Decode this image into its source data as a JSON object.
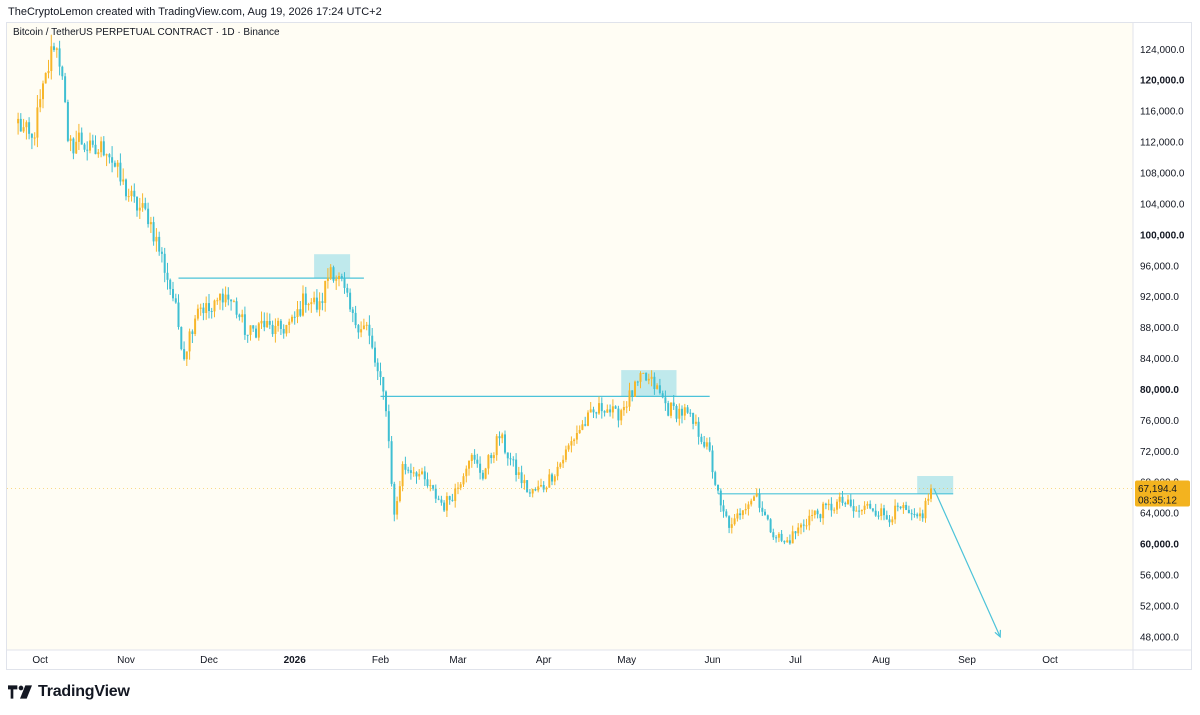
{
  "header": {
    "attribution": "TheCryptoLemon created with TradingView.com, Aug 19, 2026 17:24 UTC+2"
  },
  "symbol": {
    "title": "Bitcoin / TetherUS PERPETUAL CONTRACT · 1D · Binance"
  },
  "footer": {
    "brand": "TradingView"
  },
  "colors": {
    "background": "#fffdf4",
    "up": "#f7b62a",
    "down": "#3fbfd2",
    "line": "#4cc3d9",
    "box": "#a9e2ea",
    "price_label_bg": "#f3b31f",
    "axis_text": "#131722"
  },
  "chart_data": {
    "type": "candlestick",
    "y_axis": {
      "ticks": [
        "124,000.0",
        "120,000.0",
        "116,000.0",
        "112,000.0",
        "108,000.0",
        "104,000.0",
        "100,000.0",
        "96,000.0",
        "92,000.0",
        "88,000.0",
        "84,000.0",
        "80,000.0",
        "76,000.0",
        "72,000.0",
        "68,000.0",
        "64,000.0",
        "60,000.0",
        "56,000.0",
        "52,000.0",
        "48,000.0"
      ],
      "bold_ticks": [
        "120,000.0",
        "100,000.0",
        "80,000.0",
        "60,000.0"
      ],
      "range": [
        46300,
        127400
      ]
    },
    "x_axis": {
      "labels": [
        "Oct",
        "Nov",
        "Dec",
        "2026",
        "Feb",
        "Mar",
        "Apr",
        "May",
        "Jun",
        "Jul",
        "Aug",
        "Sep",
        "Oct"
      ],
      "bold_labels": [
        "2026"
      ],
      "dates": [
        "2025-10-01",
        "2025-11-01",
        "2025-12-01",
        "2026-01-01",
        "2026-02-01",
        "2026-03-01",
        "2026-04-01",
        "2026-05-01",
        "2026-06-01",
        "2026-07-01",
        "2026-08-01",
        "2026-09-01",
        "2026-10-01"
      ]
    },
    "current_price": {
      "value": 67194.4,
      "label": "67,194.4",
      "countdown": "08:35:12"
    },
    "anchors": [
      {
        "date": "2025-09-23",
        "price": 114500
      },
      {
        "date": "2025-09-28",
        "price": 112000
      },
      {
        "date": "2025-10-02",
        "price": 118500
      },
      {
        "date": "2025-10-06",
        "price": 125000
      },
      {
        "date": "2025-10-09",
        "price": 121500
      },
      {
        "date": "2025-10-11",
        "price": 111000
      },
      {
        "date": "2025-10-15",
        "price": 112500
      },
      {
        "date": "2025-10-20",
        "price": 110500
      },
      {
        "date": "2025-10-25",
        "price": 111500
      },
      {
        "date": "2025-10-30",
        "price": 107000
      },
      {
        "date": "2025-11-04",
        "price": 104000
      },
      {
        "date": "2025-11-09",
        "price": 102500
      },
      {
        "date": "2025-11-14",
        "price": 97000
      },
      {
        "date": "2025-11-18",
        "price": 92000
      },
      {
        "date": "2025-11-22",
        "price": 84500
      },
      {
        "date": "2025-11-27",
        "price": 91000
      },
      {
        "date": "2025-12-02",
        "price": 90000
      },
      {
        "date": "2025-12-06",
        "price": 92500
      },
      {
        "date": "2025-12-10",
        "price": 91000
      },
      {
        "date": "2025-12-15",
        "price": 87000
      },
      {
        "date": "2025-12-20",
        "price": 88500
      },
      {
        "date": "2025-12-25",
        "price": 87500
      },
      {
        "date": "2025-12-31",
        "price": 88500
      },
      {
        "date": "2026-01-05",
        "price": 92000
      },
      {
        "date": "2026-01-10",
        "price": 90500
      },
      {
        "date": "2026-01-14",
        "price": 96000
      },
      {
        "date": "2026-01-18",
        "price": 93500
      },
      {
        "date": "2026-01-22",
        "price": 89000
      },
      {
        "date": "2026-01-27",
        "price": 88000
      },
      {
        "date": "2026-01-31",
        "price": 82000
      },
      {
        "date": "2026-02-03",
        "price": 78000
      },
      {
        "date": "2026-02-06",
        "price": 63500
      },
      {
        "date": "2026-02-09",
        "price": 70000
      },
      {
        "date": "2026-02-14",
        "price": 69500
      },
      {
        "date": "2026-02-19",
        "price": 67000
      },
      {
        "date": "2026-02-24",
        "price": 65000
      },
      {
        "date": "2026-03-01",
        "price": 67500
      },
      {
        "date": "2026-03-05",
        "price": 71500
      },
      {
        "date": "2026-03-10",
        "price": 69000
      },
      {
        "date": "2026-03-16",
        "price": 74000
      },
      {
        "date": "2026-03-21",
        "price": 70000
      },
      {
        "date": "2026-03-27",
        "price": 66500
      },
      {
        "date": "2026-04-01",
        "price": 67500
      },
      {
        "date": "2026-04-07",
        "price": 70500
      },
      {
        "date": "2026-04-13",
        "price": 74500
      },
      {
        "date": "2026-04-18",
        "price": 76500
      },
      {
        "date": "2026-04-23",
        "price": 78000
      },
      {
        "date": "2026-04-27",
        "price": 76500
      },
      {
        "date": "2026-05-02",
        "price": 79000
      },
      {
        "date": "2026-05-07",
        "price": 81500
      },
      {
        "date": "2026-05-11",
        "price": 80500
      },
      {
        "date": "2026-05-16",
        "price": 77500
      },
      {
        "date": "2026-05-22",
        "price": 77000
      },
      {
        "date": "2026-05-28",
        "price": 74000
      },
      {
        "date": "2026-05-31",
        "price": 71500
      },
      {
        "date": "2026-06-04",
        "price": 64500
      },
      {
        "date": "2026-06-08",
        "price": 62000
      },
      {
        "date": "2026-06-12",
        "price": 65000
      },
      {
        "date": "2026-06-17",
        "price": 66500
      },
      {
        "date": "2026-06-21",
        "price": 62500
      },
      {
        "date": "2026-06-27",
        "price": 60000
      },
      {
        "date": "2026-07-01",
        "price": 61500
      },
      {
        "date": "2026-07-06",
        "price": 63500
      },
      {
        "date": "2026-07-12",
        "price": 64500
      },
      {
        "date": "2026-07-18",
        "price": 65500
      },
      {
        "date": "2026-07-23",
        "price": 64000
      },
      {
        "date": "2026-07-28",
        "price": 65000
      },
      {
        "date": "2026-08-03",
        "price": 63500
      },
      {
        "date": "2026-08-08",
        "price": 64500
      },
      {
        "date": "2026-08-13",
        "price": 63000
      },
      {
        "date": "2026-08-16",
        "price": 64000
      },
      {
        "date": "2026-08-19",
        "price": 67194.4
      }
    ],
    "annotations": {
      "horizontal_lines": [
        {
          "price": 94400,
          "from": "2025-11-20",
          "to": "2026-01-26"
        },
        {
          "price": 79100,
          "from": "2026-02-01",
          "to": "2026-05-31"
        },
        {
          "price": 66500,
          "from": "2026-06-03",
          "to": "2026-08-27"
        }
      ],
      "boxes": [
        {
          "price_low": 94400,
          "price_high": 97500,
          "from": "2026-01-08",
          "to": "2026-01-21"
        },
        {
          "price_low": 79100,
          "price_high": 82500,
          "from": "2026-04-29",
          "to": "2026-05-19"
        },
        {
          "price_low": 66500,
          "price_high": 68800,
          "from": "2026-08-14",
          "to": "2026-08-27"
        }
      ],
      "arrow": {
        "from_date": "2026-08-20",
        "from_price": 67200,
        "to_date": "2026-09-13",
        "to_price": 48000
      }
    }
  }
}
